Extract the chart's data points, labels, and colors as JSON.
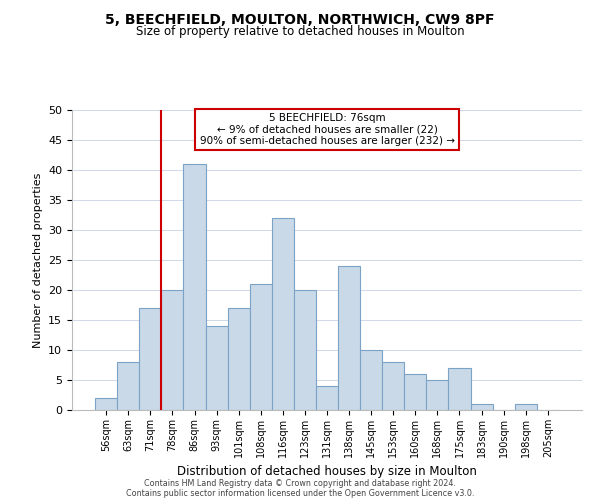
{
  "title": "5, BEECHFIELD, MOULTON, NORTHWICH, CW9 8PF",
  "subtitle": "Size of property relative to detached houses in Moulton",
  "xlabel": "Distribution of detached houses by size in Moulton",
  "ylabel": "Number of detached properties",
  "categories": [
    "56sqm",
    "63sqm",
    "71sqm",
    "78sqm",
    "86sqm",
    "93sqm",
    "101sqm",
    "108sqm",
    "116sqm",
    "123sqm",
    "131sqm",
    "138sqm",
    "145sqm",
    "153sqm",
    "160sqm",
    "168sqm",
    "175sqm",
    "183sqm",
    "190sqm",
    "198sqm",
    "205sqm"
  ],
  "values": [
    2,
    8,
    17,
    20,
    41,
    14,
    17,
    21,
    32,
    20,
    4,
    24,
    10,
    8,
    6,
    5,
    7,
    1,
    0,
    1,
    0
  ],
  "bar_color": "#c9d9e8",
  "bar_edge_color": "#7ba3c8",
  "vline_color": "#cc0000",
  "vline_x_index": 3,
  "ylim": [
    0,
    50
  ],
  "yticks": [
    0,
    5,
    10,
    15,
    20,
    25,
    30,
    35,
    40,
    45,
    50
  ],
  "annotation_line1": "5 BEECHFIELD: 76sqm",
  "annotation_line2": "← 9% of detached houses are smaller (22)",
  "annotation_line3": "90% of semi-detached houses are larger (232) →",
  "footer_line1": "Contains HM Land Registry data © Crown copyright and database right 2024.",
  "footer_line2": "Contains public sector information licensed under the Open Government Licence v3.0.",
  "background_color": "#ffffff",
  "grid_color": "#d0d8e8"
}
